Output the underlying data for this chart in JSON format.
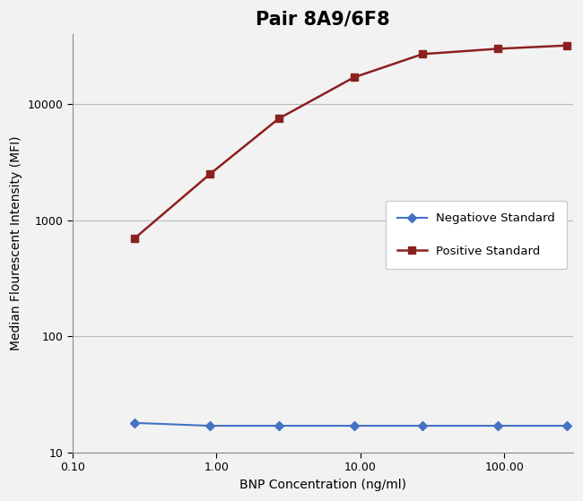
{
  "title": "Pair 8A9/6F8",
  "xlabel": "BNP Concentration (ng/ml)",
  "ylabel": "Median Flourescent Intensity (MFI)",
  "xlim": [
    0.1,
    300
  ],
  "ylim": [
    10,
    40000
  ],
  "positive_x": [
    0.27,
    0.9,
    2.7,
    9.0,
    27.0,
    90.0,
    270.0
  ],
  "positive_y": [
    700,
    2500,
    7500,
    17000,
    27000,
    30000,
    32000
  ],
  "negative_x": [
    0.27,
    0.9,
    2.7,
    9.0,
    27.0,
    90.0,
    270.0
  ],
  "negative_y": [
    18,
    17,
    17,
    17,
    17,
    17,
    17
  ],
  "positive_color": "#8B2020",
  "negative_color": "#4472C4",
  "positive_label": "Positive Standard",
  "negative_label": "Negatiove Standard",
  "grid_color": "#BBBBBB",
  "background_color": "#F2F2F2",
  "title_fontsize": 15,
  "label_fontsize": 10,
  "legend_fontsize": 9.5,
  "xtick_positions": [
    0.1,
    1.0,
    10.0,
    100.0
  ],
  "xtick_labels": [
    "0.10",
    "1.00",
    "10.00",
    "100.00"
  ],
  "ytick_positions": [
    10,
    100,
    1000,
    10000
  ],
  "ytick_labels": [
    "10",
    "100",
    "1000",
    "10000"
  ]
}
